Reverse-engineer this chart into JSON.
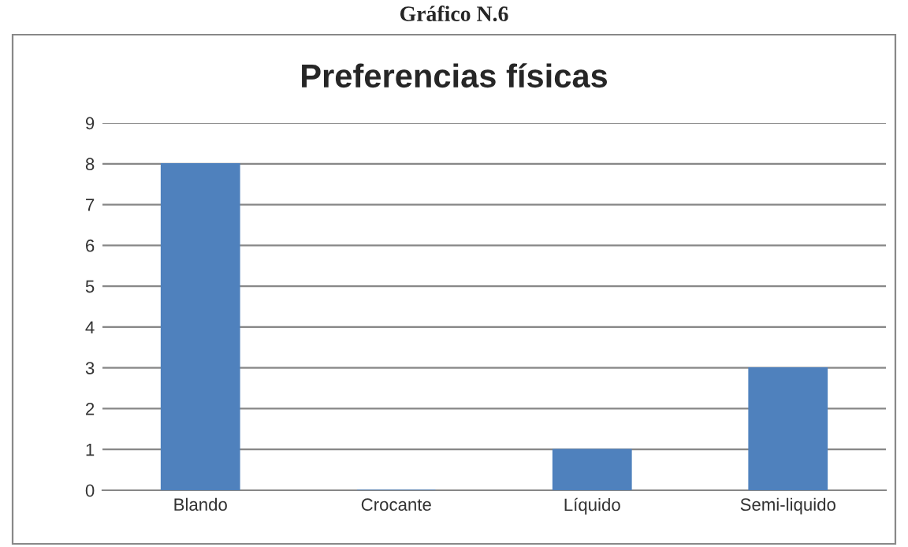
{
  "chart_data": {
    "type": "bar",
    "title": "Gráfico N.6",
    "subtitle": "Preferencias físicas",
    "categories": [
      "Blando",
      "Crocante",
      "Líquido",
      "Semi-liquido"
    ],
    "values": [
      8,
      0,
      1,
      3
    ],
    "color": "#4f81bd",
    "ylim": [
      0,
      9
    ],
    "yticks": [
      0,
      1,
      2,
      3,
      4,
      5,
      6,
      7,
      8,
      9
    ],
    "grid": "y",
    "legend": false
  }
}
